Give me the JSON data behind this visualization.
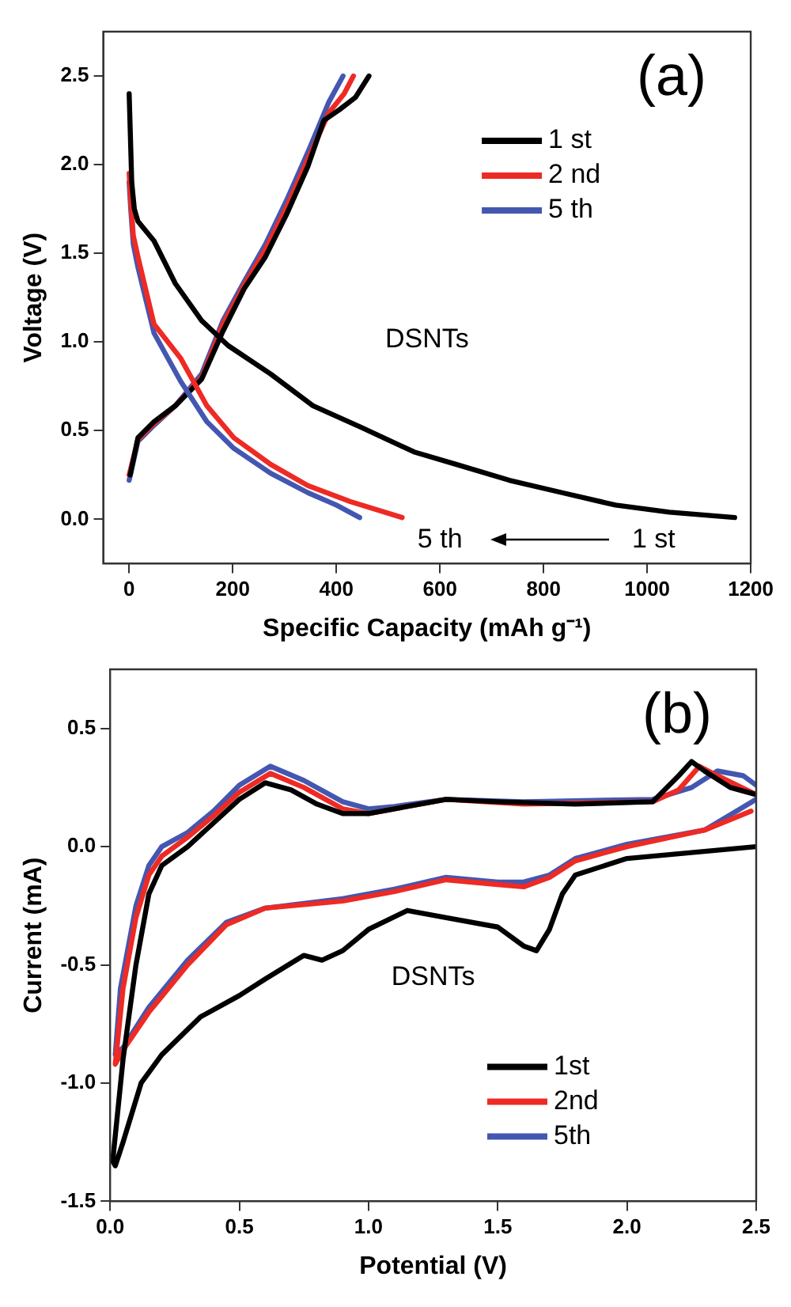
{
  "chart_data": [
    {
      "type": "line",
      "title": "(a)",
      "xlabel": "Specific Capacity (mAh g⁻¹)",
      "ylabel": "Voltage (V)",
      "xlim": [
        -50,
        1200
      ],
      "xticks": [
        0,
        200,
        400,
        600,
        800,
        1000,
        1200
      ],
      "ylim": [
        -0.25,
        2.75
      ],
      "yticks": [
        {
          "value": 0,
          "label": "0.0"
        },
        0.5,
        {
          "value": 1,
          "label": "1.0"
        },
        1.5,
        {
          "value": 2,
          "label": "2.0"
        },
        2.5
      ],
      "legend": "top right",
      "annotations": [
        "DSNTs",
        "5 th",
        "1 st"
      ],
      "series": [
        {
          "name": "1 st",
          "color": "#000000",
          "x": [
            0,
            2,
            5,
            10,
            17,
            48,
            89,
            140,
            191,
            273,
            355,
            447,
            550,
            631,
            734,
            836,
            939,
            1043,
            1169
          ],
          "values": [
            2.4,
            2.2,
            1.9,
            1.75,
            1.68,
            1.57,
            1.33,
            1.12,
            0.98,
            0.82,
            0.64,
            0.52,
            0.38,
            0.31,
            0.22,
            0.15,
            0.08,
            0.04,
            0.01
          ]
        },
        {
          "name": "2 nd",
          "color": "#ee2a24",
          "x": [
            0,
            3,
            8,
            17,
            48,
            99,
            150,
            202,
            273,
            345,
            427,
            527
          ],
          "values": [
            1.95,
            1.8,
            1.6,
            1.48,
            1.1,
            0.91,
            0.64,
            0.46,
            0.31,
            0.19,
            0.1,
            0.01
          ]
        },
        {
          "name": "5 th",
          "color": "#4457b0",
          "x": [
            0,
            3,
            8,
            17,
            48,
            99,
            150,
            202,
            273,
            345,
            400,
            445
          ],
          "values": [
            1.9,
            1.75,
            1.55,
            1.42,
            1.05,
            0.78,
            0.55,
            0.4,
            0.26,
            0.15,
            0.08,
            0.01
          ]
        },
        {
          "color": "#000000",
          "x": [
            2,
            17,
            48,
            89,
            140,
            181,
            222,
            263,
            304,
            345,
            376,
            406,
            437,
            463
          ],
          "values": [
            0.25,
            0.46,
            0.55,
            0.64,
            0.79,
            1.06,
            1.3,
            1.48,
            1.72,
            1.99,
            2.25,
            2.31,
            2.38,
            2.5
          ]
        },
        {
          "color": "#ee2a24",
          "x": [
            0,
            17,
            48,
            89,
            140,
            181,
            222,
            263,
            304,
            345,
            385,
            415,
            433
          ],
          "values": [
            0.25,
            0.45,
            0.54,
            0.64,
            0.8,
            1.1,
            1.32,
            1.52,
            1.76,
            2.03,
            2.29,
            2.4,
            2.5
          ]
        },
        {
          "color": "#4457b0",
          "x": [
            0,
            17,
            48,
            89,
            140,
            181,
            222,
            263,
            304,
            345,
            385,
            413
          ],
          "values": [
            0.22,
            0.44,
            0.53,
            0.64,
            0.82,
            1.12,
            1.34,
            1.55,
            1.8,
            2.07,
            2.35,
            2.5
          ]
        }
      ]
    },
    {
      "type": "line",
      "title": "(b)",
      "xlabel": "Potential (V)",
      "ylabel": "Current (mA)",
      "xlim": [
        0,
        2.5
      ],
      "xticks": [
        {
          "value": 0,
          "label": "0.0"
        },
        0.5,
        {
          "value": 1,
          "label": "1.0"
        },
        1.5,
        {
          "value": 2,
          "label": "2.0"
        },
        2.5
      ],
      "ylim": [
        -1.5,
        0.75
      ],
      "yticks": [
        -1.5,
        {
          "value": -1,
          "label": "-1.0"
        },
        -0.5,
        {
          "value": 0,
          "label": "0.0"
        },
        0.5
      ],
      "legend": "bottom right",
      "annotations": [
        "DSNTs"
      ],
      "series": [
        {
          "name": "1st",
          "color": "#000000",
          "x": [
            2.5,
            2.0,
            1.8,
            1.75,
            1.7,
            1.65,
            1.6,
            1.5,
            1.3,
            1.15,
            1.0,
            0.9,
            0.82,
            0.75,
            0.6,
            0.5,
            0.35,
            0.2,
            0.12,
            0.05,
            0.02,
            0.01,
            0.05,
            0.1,
            0.15,
            0.2,
            0.3,
            0.4,
            0.5,
            0.6,
            0.7,
            0.8,
            0.9,
            1.0,
            1.1,
            1.3,
            1.5,
            1.8,
            2.1,
            2.2,
            2.25,
            2.3,
            2.4,
            2.5
          ],
          "values": [
            0.0,
            -0.05,
            -0.12,
            -0.2,
            -0.35,
            -0.44,
            -0.42,
            -0.34,
            -0.3,
            -0.27,
            -0.35,
            -0.44,
            -0.48,
            -0.46,
            -0.56,
            -0.63,
            -0.72,
            -0.88,
            -1.0,
            -1.25,
            -1.35,
            -1.33,
            -0.9,
            -0.5,
            -0.2,
            -0.08,
            0.0,
            0.1,
            0.2,
            0.27,
            0.24,
            0.18,
            0.14,
            0.14,
            0.16,
            0.2,
            0.19,
            0.18,
            0.19,
            0.3,
            0.36,
            0.32,
            0.25,
            0.22
          ]
        },
        {
          "name": "2nd",
          "color": "#ee2a24",
          "x": [
            2.48,
            2.3,
            2.0,
            1.8,
            1.7,
            1.6,
            1.5,
            1.3,
            1.1,
            0.9,
            0.6,
            0.45,
            0.3,
            0.15,
            0.05,
            0.02,
            0.05,
            0.1,
            0.15,
            0.2,
            0.3,
            0.4,
            0.5,
            0.62,
            0.75,
            0.9,
            1.0,
            1.1,
            1.3,
            1.6,
            2.1,
            2.2,
            2.28,
            2.35,
            2.5
          ],
          "values": [
            0.15,
            0.07,
            0.0,
            -0.06,
            -0.13,
            -0.17,
            -0.16,
            -0.14,
            -0.19,
            -0.23,
            -0.26,
            -0.33,
            -0.5,
            -0.7,
            -0.86,
            -0.92,
            -0.6,
            -0.3,
            -0.12,
            -0.04,
            0.04,
            0.13,
            0.23,
            0.31,
            0.25,
            0.16,
            0.14,
            0.16,
            0.2,
            0.18,
            0.19,
            0.24,
            0.34,
            0.3,
            0.22
          ]
        },
        {
          "name": "5th",
          "color": "#4457b0",
          "x": [
            2.5,
            2.3,
            2.0,
            1.8,
            1.7,
            1.6,
            1.5,
            1.3,
            1.1,
            0.9,
            0.6,
            0.45,
            0.3,
            0.15,
            0.05,
            0.02,
            0.04,
            0.1,
            0.15,
            0.2,
            0.3,
            0.4,
            0.5,
            0.62,
            0.75,
            0.9,
            1.0,
            1.1,
            1.3,
            1.6,
            2.1,
            2.25,
            2.35,
            2.45,
            2.5
          ],
          "values": [
            0.2,
            0.07,
            0.01,
            -0.05,
            -0.12,
            -0.15,
            -0.15,
            -0.13,
            -0.18,
            -0.22,
            -0.26,
            -0.32,
            -0.48,
            -0.68,
            -0.85,
            -0.88,
            -0.6,
            -0.25,
            -0.08,
            0.0,
            0.06,
            0.15,
            0.26,
            0.34,
            0.28,
            0.19,
            0.16,
            0.17,
            0.2,
            0.19,
            0.2,
            0.25,
            0.32,
            0.3,
            0.26
          ]
        }
      ]
    }
  ]
}
